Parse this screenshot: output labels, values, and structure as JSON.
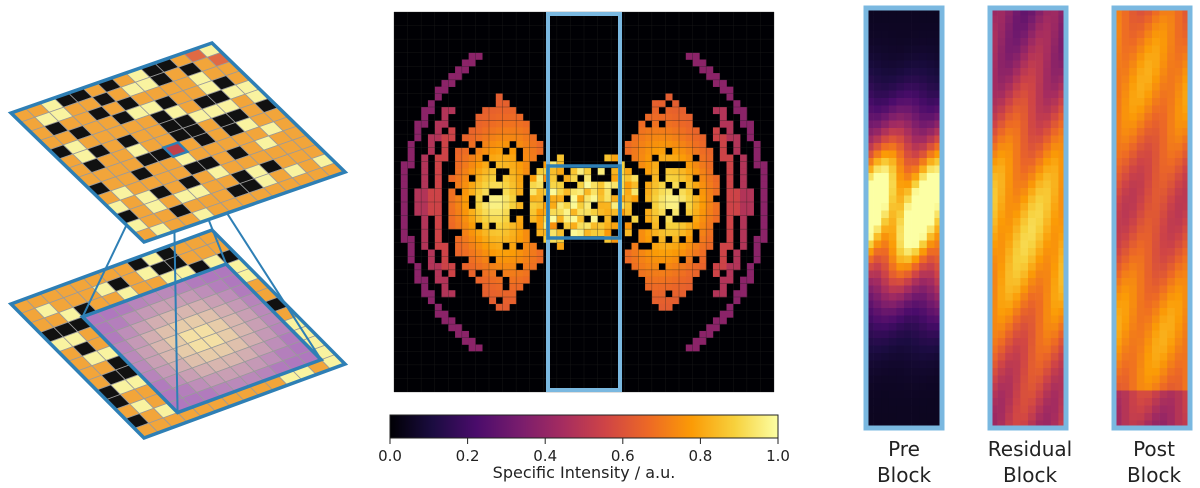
{
  "colormap": {
    "name": "inferno",
    "stops": [
      "#000004",
      "#1b0c41",
      "#4a0c6b",
      "#781c6d",
      "#a52c60",
      "#cf4446",
      "#ed6925",
      "#fb9b06",
      "#f7d13d",
      "#fcffa4"
    ]
  },
  "colors": {
    "frame": "#7ab8e0",
    "frame_dark": "#2e7fb5",
    "grid_line": "#9a9a9a",
    "highlight_cell": "#c0404a",
    "yellow_cell": "#f9f3a0",
    "orange_cell": "#f2a53a"
  },
  "colorbar": {
    "label": "Specific Intensity / a.u.",
    "ticks": [
      "0.0",
      "0.2",
      "0.4",
      "0.6",
      "0.8",
      "1.0"
    ],
    "range": [
      0,
      1
    ]
  },
  "panels": [
    {
      "label_line1": "Pre",
      "label_line2": "Block"
    },
    {
      "label_line1": "Residual",
      "label_line2": "Block"
    },
    {
      "label_line1": "Post",
      "label_line2": "Block"
    }
  ]
}
